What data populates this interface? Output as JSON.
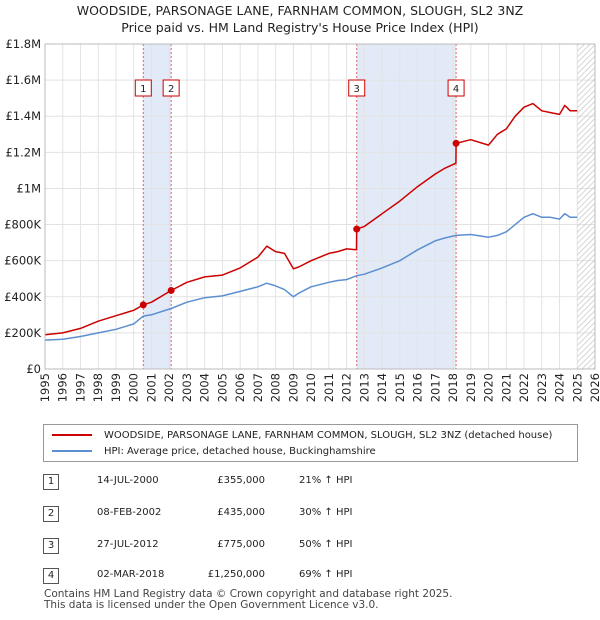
{
  "chart_data": {
    "type": "line",
    "title": "WOODSIDE, PARSONAGE LANE, FARNHAM COMMON, SLOUGH, SL2 3NZ",
    "subtitle": "Price paid vs. HM Land Registry's House Price Index (HPI)",
    "xlabel": "",
    "ylabel": "",
    "xlim": [
      1995,
      2026
    ],
    "ylim": [
      0,
      1800000
    ],
    "x_ticks": [
      1995,
      1996,
      1997,
      1998,
      1999,
      2000,
      2001,
      2002,
      2003,
      2004,
      2005,
      2006,
      2007,
      2008,
      2009,
      2010,
      2011,
      2012,
      2013,
      2014,
      2015,
      2016,
      2017,
      2018,
      2019,
      2020,
      2021,
      2022,
      2023,
      2024,
      2025,
      2026
    ],
    "y_ticks": [
      {
        "value": 0,
        "label": "£0"
      },
      {
        "value": 200000,
        "label": "£200K"
      },
      {
        "value": 400000,
        "label": "£400K"
      },
      {
        "value": 600000,
        "label": "£600K"
      },
      {
        "value": 800000,
        "label": "£800K"
      },
      {
        "value": 1000000,
        "label": "£1M"
      },
      {
        "value": 1200000,
        "label": "£1.2M"
      },
      {
        "value": 1400000,
        "label": "£1.4M"
      },
      {
        "value": 1600000,
        "label": "£1.6M"
      },
      {
        "value": 1800000,
        "label": "£1.8M"
      }
    ],
    "grid": true,
    "forecast_start": 2025.0,
    "shaded_periods": [
      [
        2000.54,
        2002.11
      ],
      [
        2012.57,
        2018.17
      ]
    ],
    "series": [
      {
        "name": "WOODSIDE, PARSONAGE LANE, FARNHAM COMMON, SLOUGH, SL2 3NZ (detached house)",
        "color": "#cc0000",
        "x": [
          1995.0,
          1996.0,
          1997.0,
          1998.0,
          1999.0,
          2000.0,
          2000.54,
          2001.0,
          2002.11,
          2003.0,
          2004.0,
          2005.0,
          2006.0,
          2007.0,
          2007.5,
          2008.0,
          2008.5,
          2009.0,
          2009.3,
          2010.0,
          2011.0,
          2011.5,
          2012.0,
          2012.56,
          2012.57,
          2013.0,
          2014.0,
          2015.0,
          2016.0,
          2017.0,
          2017.5,
          2018.16,
          2018.17,
          2019.0,
          2020.0,
          2020.5,
          2021.0,
          2021.5,
          2022.0,
          2022.5,
          2023.0,
          2023.5,
          2024.0,
          2024.3,
          2024.6,
          2025.0
        ],
        "y": [
          190000,
          200000,
          225000,
          265000,
          295000,
          325000,
          355000,
          370000,
          435000,
          480000,
          510000,
          520000,
          560000,
          620000,
          680000,
          650000,
          640000,
          555000,
          565000,
          600000,
          640000,
          650000,
          665000,
          660000,
          775000,
          790000,
          860000,
          930000,
          1010000,
          1080000,
          1110000,
          1140000,
          1250000,
          1270000,
          1240000,
          1300000,
          1330000,
          1400000,
          1450000,
          1470000,
          1430000,
          1420000,
          1410000,
          1460000,
          1430000,
          1430000
        ]
      },
      {
        "name": "HPI: Average price, detached house, Buckinghamshire",
        "color": "#5b8fd0",
        "x": [
          1995.0,
          1996.0,
          1997.0,
          1998.0,
          1999.0,
          2000.0,
          2000.54,
          2001.0,
          2002.11,
          2003.0,
          2004.0,
          2005.0,
          2006.0,
          2007.0,
          2007.5,
          2008.0,
          2008.5,
          2009.0,
          2009.3,
          2010.0,
          2011.0,
          2011.5,
          2012.0,
          2012.57,
          2013.0,
          2014.0,
          2015.0,
          2016.0,
          2017.0,
          2017.5,
          2018.17,
          2019.0,
          2020.0,
          2020.5,
          2021.0,
          2021.5,
          2022.0,
          2022.5,
          2023.0,
          2023.5,
          2024.0,
          2024.3,
          2024.6,
          2025.0
        ],
        "y": [
          160000,
          165000,
          180000,
          200000,
          220000,
          250000,
          293000,
          300000,
          335000,
          370000,
          395000,
          405000,
          430000,
          455000,
          475000,
          460000,
          440000,
          400000,
          420000,
          455000,
          480000,
          490000,
          495000,
          517000,
          525000,
          560000,
          600000,
          660000,
          710000,
          725000,
          740000,
          745000,
          730000,
          740000,
          760000,
          800000,
          840000,
          860000,
          840000,
          840000,
          830000,
          860000,
          840000,
          840000
        ]
      }
    ],
    "sale_markers": [
      {
        "label": "1",
        "x": 2000.54,
        "y": 355000
      },
      {
        "label": "2",
        "x": 2002.11,
        "y": 435000
      },
      {
        "label": "3",
        "x": 2012.57,
        "y": 775000
      },
      {
        "label": "4",
        "x": 2018.17,
        "y": 1250000
      }
    ]
  },
  "legend": {
    "items": [
      {
        "label": "WOODSIDE, PARSONAGE LANE, FARNHAM COMMON, SLOUGH, SL2 3NZ (detached house)",
        "color": "#cc0000"
      },
      {
        "label": "HPI: Average price, detached house, Buckinghamshire",
        "color": "#5b8fd0"
      }
    ]
  },
  "sales": [
    {
      "num": "1",
      "date": "14-JUL-2000",
      "price": "£355,000",
      "hpi": "21% ↑ HPI"
    },
    {
      "num": "2",
      "date": "08-FEB-2002",
      "price": "£435,000",
      "hpi": "30% ↑ HPI"
    },
    {
      "num": "3",
      "date": "27-JUL-2012",
      "price": "£775,000",
      "hpi": "50% ↑ HPI"
    },
    {
      "num": "4",
      "date": "02-MAR-2018",
      "price": "£1,250,000",
      "hpi": "69% ↑ HPI"
    }
  ],
  "footer": {
    "line1": "Contains HM Land Registry data © Crown copyright and database right 2025.",
    "line2": "This data is licensed under the Open Government Licence v3.0."
  }
}
